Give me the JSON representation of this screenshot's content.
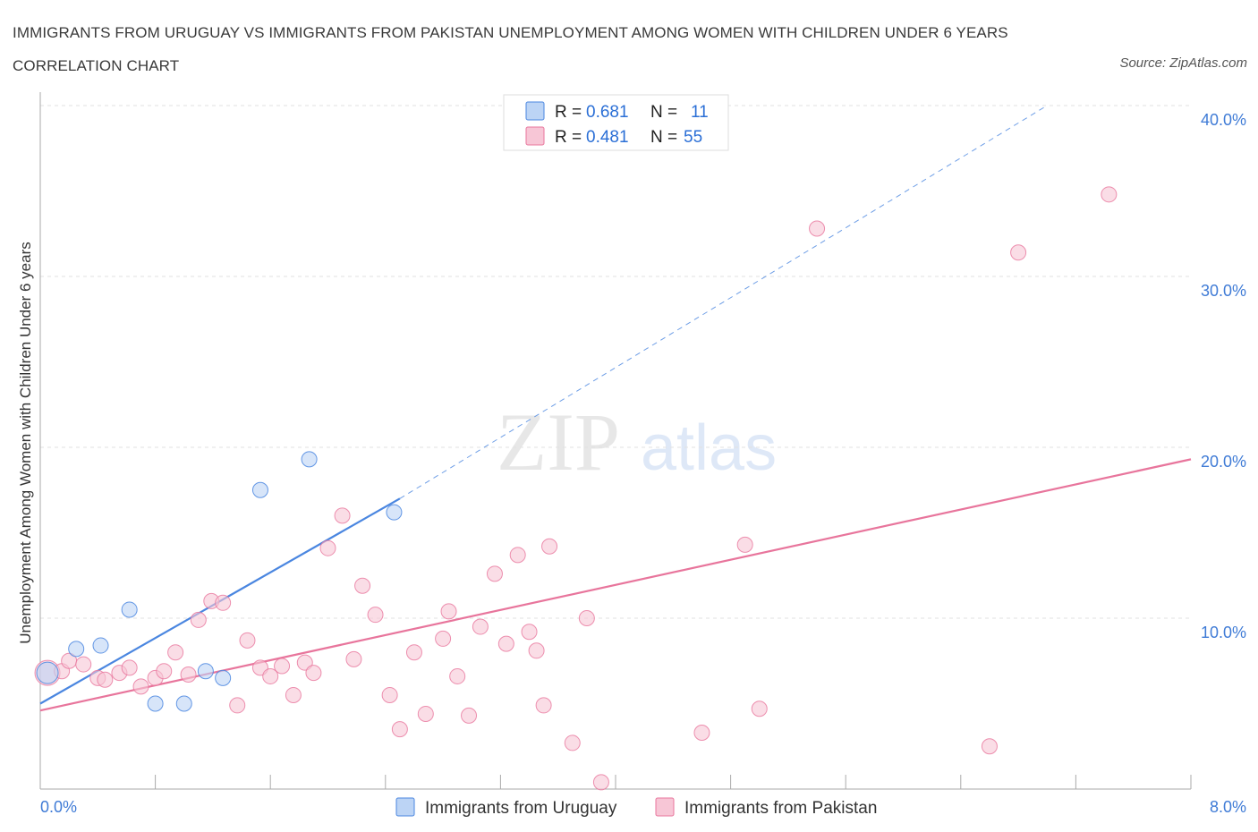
{
  "title": "IMMIGRANTS FROM URUGUAY VS IMMIGRANTS FROM PAKISTAN UNEMPLOYMENT AMONG WOMEN WITH CHILDREN UNDER 6 YEARS CORRELATION CHART",
  "source": "Source: ZipAtlas.com",
  "watermark": {
    "zip": "ZIP",
    "atlas": "atlas"
  },
  "colors": {
    "uruguay": "#4a86e0",
    "uruguay_fill": "#bcd4f5",
    "pakistan": "#e8759c",
    "pakistan_fill": "#f7c6d6",
    "tick_text": "#3f7bd6"
  },
  "legend": {
    "uruguay": {
      "r_label": "R = ",
      "r_value": "0.681",
      "n_label": "N = ",
      "n_value": "11"
    },
    "pakistan": {
      "r_label": "R = ",
      "r_value": "0.481",
      "n_label": "N = ",
      "n_value": "55"
    }
  },
  "chart_data": {
    "type": "scatter",
    "title": "IMMIGRANTS FROM URUGUAY VS IMMIGRANTS FROM PAKISTAN UNEMPLOYMENT AMONG WOMEN WITH CHILDREN UNDER 6 YEARS CORRELATION CHART",
    "xlabel": "",
    "ylabel": "Unemployment Among Women with Children Under 6 years",
    "xlim": [
      0,
      8
    ],
    "ylim": [
      0,
      40
    ],
    "x_tick_labels": [
      "0.0%",
      "8.0%"
    ],
    "y_ticks": [
      10,
      20,
      30,
      40
    ],
    "y_tick_labels": [
      "10.0%",
      "20.0%",
      "30.0%",
      "40.0%"
    ],
    "grid": true,
    "legend_position": "top-center",
    "series": [
      {
        "name": "Immigrants from Uruguay",
        "r": 0.681,
        "n": 11,
        "points": [
          [
            0.05,
            6.8
          ],
          [
            0.25,
            8.2
          ],
          [
            0.42,
            8.4
          ],
          [
            0.62,
            10.5
          ],
          [
            0.8,
            5.0
          ],
          [
            1.0,
            5.0
          ],
          [
            1.15,
            6.9
          ],
          [
            1.27,
            6.5
          ],
          [
            1.53,
            17.5
          ],
          [
            1.87,
            19.3
          ],
          [
            2.46,
            16.2
          ]
        ],
        "trend": {
          "x0": 0,
          "y0": 5.0,
          "x1": 2.5,
          "y1": 17.0,
          "dash_to_x": 7.0,
          "dash_to_y": 40.0
        }
      },
      {
        "name": "Immigrants from Pakistan",
        "r": 0.481,
        "n": 55,
        "points": [
          [
            0.05,
            6.8
          ],
          [
            0.15,
            6.9
          ],
          [
            0.2,
            7.5
          ],
          [
            0.3,
            7.3
          ],
          [
            0.4,
            6.5
          ],
          [
            0.45,
            6.4
          ],
          [
            0.55,
            6.8
          ],
          [
            0.62,
            7.1
          ],
          [
            0.7,
            6.0
          ],
          [
            0.8,
            6.5
          ],
          [
            0.86,
            6.9
          ],
          [
            0.94,
            8.0
          ],
          [
            1.03,
            6.7
          ],
          [
            1.1,
            9.9
          ],
          [
            1.19,
            11.0
          ],
          [
            1.27,
            10.9
          ],
          [
            1.37,
            4.9
          ],
          [
            1.44,
            8.7
          ],
          [
            1.53,
            7.1
          ],
          [
            1.6,
            6.6
          ],
          [
            1.68,
            7.2
          ],
          [
            1.76,
            5.5
          ],
          [
            1.84,
            7.4
          ],
          [
            1.9,
            6.8
          ],
          [
            2.0,
            14.1
          ],
          [
            2.1,
            16.0
          ],
          [
            2.18,
            7.6
          ],
          [
            2.24,
            11.9
          ],
          [
            2.33,
            10.2
          ],
          [
            2.43,
            5.5
          ],
          [
            2.5,
            3.5
          ],
          [
            2.6,
            8.0
          ],
          [
            2.68,
            4.4
          ],
          [
            2.8,
            8.8
          ],
          [
            2.84,
            10.4
          ],
          [
            2.9,
            6.6
          ],
          [
            2.98,
            4.3
          ],
          [
            3.06,
            9.5
          ],
          [
            3.16,
            12.6
          ],
          [
            3.24,
            8.5
          ],
          [
            3.32,
            13.7
          ],
          [
            3.4,
            9.2
          ],
          [
            3.45,
            8.1
          ],
          [
            3.5,
            4.9
          ],
          [
            3.54,
            14.2
          ],
          [
            3.7,
            2.7
          ],
          [
            3.8,
            10.0
          ],
          [
            3.9,
            0.4
          ],
          [
            4.6,
            3.3
          ],
          [
            4.9,
            14.3
          ],
          [
            5.0,
            4.7
          ],
          [
            5.4,
            32.8
          ],
          [
            6.6,
            2.5
          ],
          [
            6.8,
            31.4
          ],
          [
            7.43,
            34.8
          ]
        ],
        "trend": {
          "x0": 0,
          "y0": 4.6,
          "x1": 8,
          "y1": 19.3
        }
      }
    ]
  },
  "bottom_legend": {
    "uruguay_label": "Immigrants from Uruguay",
    "pakistan_label": "Immigrants from Pakistan"
  }
}
